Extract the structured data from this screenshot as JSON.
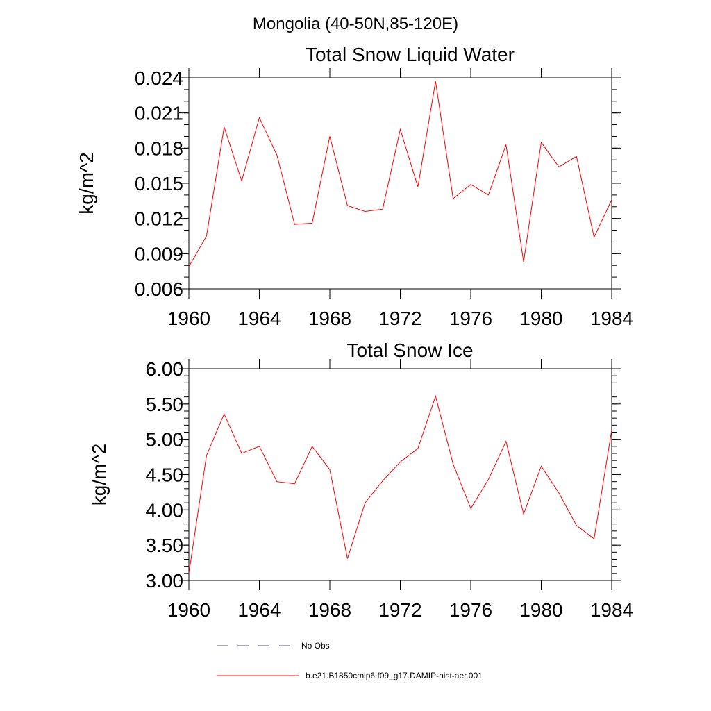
{
  "suptitle": "Mongolia (40-50N,85-120E)",
  "chart_data": [
    {
      "type": "line",
      "title": "Total Snow Liquid Water",
      "xlabel": "",
      "ylabel": "kg/m^2",
      "xlim": [
        1960,
        1984
      ],
      "ylim": [
        0.006,
        0.024
      ],
      "xticks": [
        1960,
        1964,
        1968,
        1972,
        1976,
        1980,
        1984
      ],
      "xtick_labels": [
        "1960",
        "1964",
        "1968",
        "1972",
        "1976",
        "1980",
        "1984"
      ],
      "yticks": [
        0.006,
        0.009,
        0.012,
        0.015,
        0.018,
        0.021,
        0.024
      ],
      "ytick_labels": [
        "0.006",
        "0.009",
        "0.012",
        "0.015",
        "0.018",
        "0.021",
        "0.024"
      ],
      "grid": false,
      "x": [
        1960,
        1961,
        1962,
        1963,
        1964,
        1965,
        1966,
        1967,
        1968,
        1969,
        1970,
        1971,
        1972,
        1973,
        1974,
        1975,
        1976,
        1977,
        1978,
        1979,
        1980,
        1981,
        1982,
        1983,
        1984
      ],
      "series": [
        {
          "name": "b.e21.B1850cmip6.f09_g17.DAMIP-hist-aer.001",
          "color": "#ff0000",
          "values": [
            0.0079,
            0.0105,
            0.0198,
            0.0152,
            0.0206,
            0.0174,
            0.0115,
            0.0116,
            0.019,
            0.0131,
            0.0126,
            0.0128,
            0.0196,
            0.0147,
            0.0237,
            0.0137,
            0.0149,
            0.014,
            0.0183,
            0.0083,
            0.0185,
            0.0164,
            0.0173,
            0.0104,
            0.0136
          ]
        }
      ]
    },
    {
      "type": "line",
      "title": "Total Snow Ice",
      "xlabel": "",
      "ylabel": "kg/m^2",
      "xlim": [
        1960,
        1984
      ],
      "ylim": [
        3.0,
        6.0
      ],
      "xticks": [
        1960,
        1964,
        1968,
        1972,
        1976,
        1980,
        1984
      ],
      "xtick_labels": [
        "1960",
        "1964",
        "1968",
        "1972",
        "1976",
        "1980",
        "1984"
      ],
      "yticks": [
        3.0,
        3.5,
        4.0,
        4.5,
        5.0,
        5.5,
        6.0
      ],
      "ytick_labels": [
        "3.00",
        "3.50",
        "4.00",
        "4.50",
        "5.00",
        "5.50",
        "6.00"
      ],
      "grid": false,
      "x": [
        1960,
        1961,
        1962,
        1963,
        1964,
        1965,
        1966,
        1967,
        1968,
        1969,
        1970,
        1971,
        1972,
        1973,
        1974,
        1975,
        1976,
        1977,
        1978,
        1979,
        1980,
        1981,
        1982,
        1983,
        1984
      ],
      "series": [
        {
          "name": "b.e21.B1850cmip6.f09_g17.DAMIP-hist-aer.001",
          "color": "#ff0000",
          "values": [
            3.1,
            4.77,
            5.36,
            4.8,
            4.9,
            4.4,
            4.37,
            4.9,
            4.57,
            3.31,
            4.1,
            4.41,
            4.68,
            4.87,
            5.61,
            4.65,
            4.02,
            4.43,
            4.97,
            3.94,
            4.62,
            4.24,
            3.78,
            3.59,
            5.13
          ]
        }
      ]
    }
  ],
  "legend": {
    "placement": "bottom-center",
    "entries": [
      {
        "label": "No Obs",
        "color": "#4d4d80",
        "style": "dashed"
      },
      {
        "label": "b.e21.B1850cmip6.f09_g17.DAMIP-hist-aer.001",
        "color": "#ff0000",
        "style": "solid"
      }
    ]
  }
}
